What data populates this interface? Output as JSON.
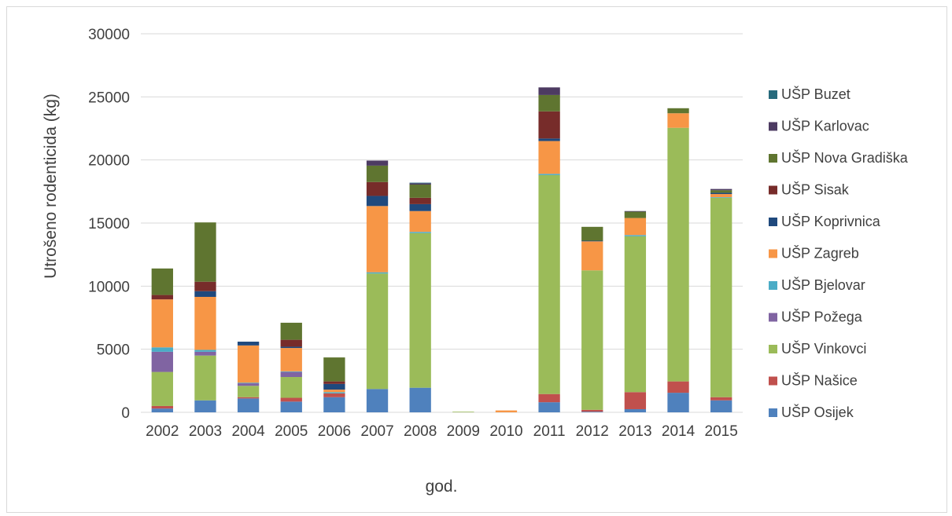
{
  "chart_data": {
    "type": "bar",
    "stacked": true,
    "xlabel": "god.",
    "ylabel": "Utrošeno rodenticida (kg)",
    "ylim": [
      0,
      30000
    ],
    "yticks": [
      0,
      5000,
      10000,
      15000,
      20000,
      25000,
      30000
    ],
    "grid": true,
    "legend_position": "right",
    "categories": [
      "2002",
      "2003",
      "2004",
      "2005",
      "2006",
      "2007",
      "2008",
      "2009",
      "2010",
      "2011",
      "2012",
      "2013",
      "2014",
      "2015"
    ],
    "series": [
      {
        "name": "UŠP Osijek",
        "color": "#4f81bd",
        "values": [
          300,
          950,
          1100,
          850,
          1200,
          1850,
          1950,
          0,
          0,
          800,
          50,
          250,
          1550,
          950
        ]
      },
      {
        "name": "UŠP  Našice",
        "color": "#c0504d",
        "values": [
          200,
          0,
          100,
          300,
          300,
          0,
          0,
          0,
          0,
          650,
          150,
          1350,
          900,
          250
        ]
      },
      {
        "name": "UŠP  Vinkovci",
        "color": "#9bbb59",
        "values": [
          2700,
          3550,
          900,
          1650,
          0,
          9150,
          12250,
          50,
          0,
          17350,
          11050,
          12350,
          20100,
          15800
        ]
      },
      {
        "name": "UŠP  Požega",
        "color": "#8064a2",
        "values": [
          1600,
          300,
          200,
          400,
          0,
          0,
          0,
          0,
          0,
          0,
          0,
          0,
          0,
          0
        ]
      },
      {
        "name": "UŠP Bjelovar",
        "color": "#4bacc6",
        "values": [
          350,
          150,
          50,
          50,
          100,
          100,
          100,
          0,
          0,
          100,
          0,
          100,
          0,
          50
        ]
      },
      {
        "name": "UŠP Zagreb",
        "color": "#f79646",
        "values": [
          3800,
          4200,
          2950,
          1850,
          200,
          5250,
          1650,
          0,
          150,
          2600,
          2300,
          1350,
          1150,
          250
        ]
      },
      {
        "name": "UŠP Koprivnica",
        "color": "#1f497d",
        "values": [
          0,
          450,
          300,
          100,
          450,
          800,
          550,
          0,
          0,
          200,
          50,
          0,
          0,
          100
        ]
      },
      {
        "name": "UŠP Sisak",
        "color": "#772c2a",
        "values": [
          350,
          750,
          0,
          550,
          200,
          1100,
          500,
          0,
          0,
          2150,
          0,
          0,
          0,
          0
        ]
      },
      {
        "name": "UŠP Nova Gradiška",
        "color": "#5f7530",
        "values": [
          2100,
          4700,
          0,
          1350,
          1900,
          1300,
          1050,
          0,
          0,
          1300,
          1100,
          500,
          400,
          200
        ]
      },
      {
        "name": "UŠP Karlovac",
        "color": "#4d3b62",
        "values": [
          0,
          0,
          0,
          0,
          0,
          400,
          100,
          0,
          0,
          600,
          0,
          50,
          0,
          100
        ]
      },
      {
        "name": "UŠP Buzet",
        "color": "#276a7c",
        "values": [
          0,
          0,
          0,
          0,
          0,
          0,
          50,
          0,
          0,
          0,
          0,
          0,
          0,
          0
        ]
      }
    ]
  }
}
